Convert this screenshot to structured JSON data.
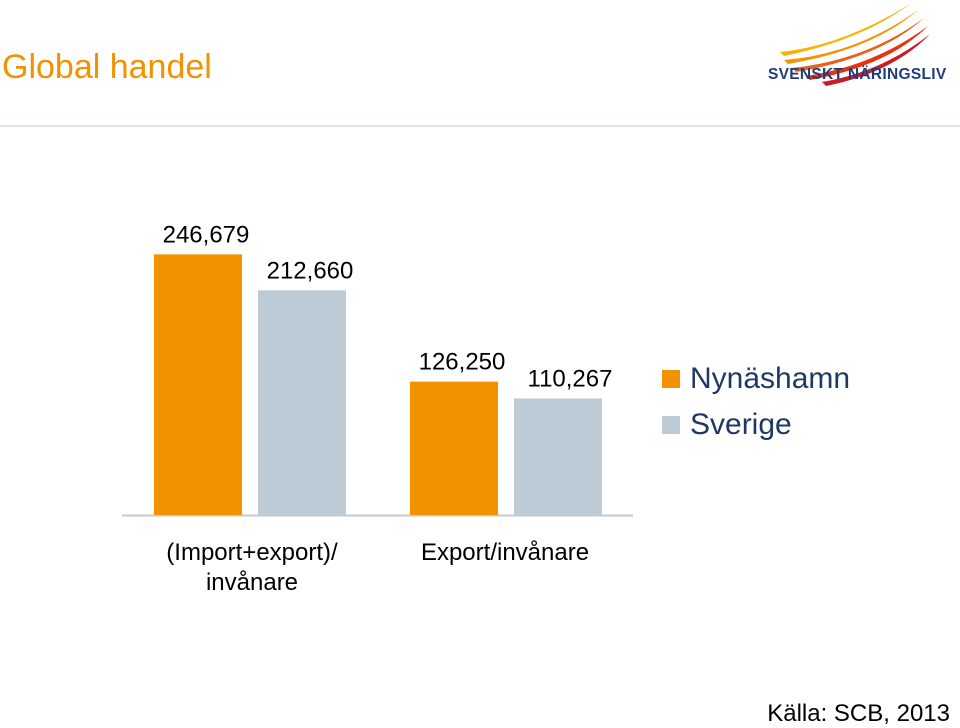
{
  "header": {
    "title": "Global handel",
    "logo_text": "SVENSKT NÄRINGSLIV"
  },
  "source": "Källa: SCB, 2013",
  "colors": {
    "accent": "#f39200",
    "series_nynashamn": "#f39200",
    "series_sverige": "#bccbd6",
    "legend_text": "#1f3864",
    "logo_navy": "#1f3d7a"
  },
  "chart_data": {
    "type": "bar",
    "title": "",
    "categories": [
      "(Import+export)/ invånare",
      "Export/invånare"
    ],
    "category_lines": [
      [
        "(Import+export)/",
        "invånare"
      ],
      [
        "Export/invånare"
      ]
    ],
    "series": [
      {
        "name": "Nynäshamn",
        "values": [
          246679,
          126250
        ],
        "labels": [
          "246,679",
          "126,250"
        ]
      },
      {
        "name": "Sverige",
        "values": [
          212660,
          110267
        ],
        "labels": [
          "212,660",
          "110,267"
        ]
      }
    ],
    "ylim": [
      0,
      265000
    ],
    "grid": false,
    "legend_position": "right"
  }
}
